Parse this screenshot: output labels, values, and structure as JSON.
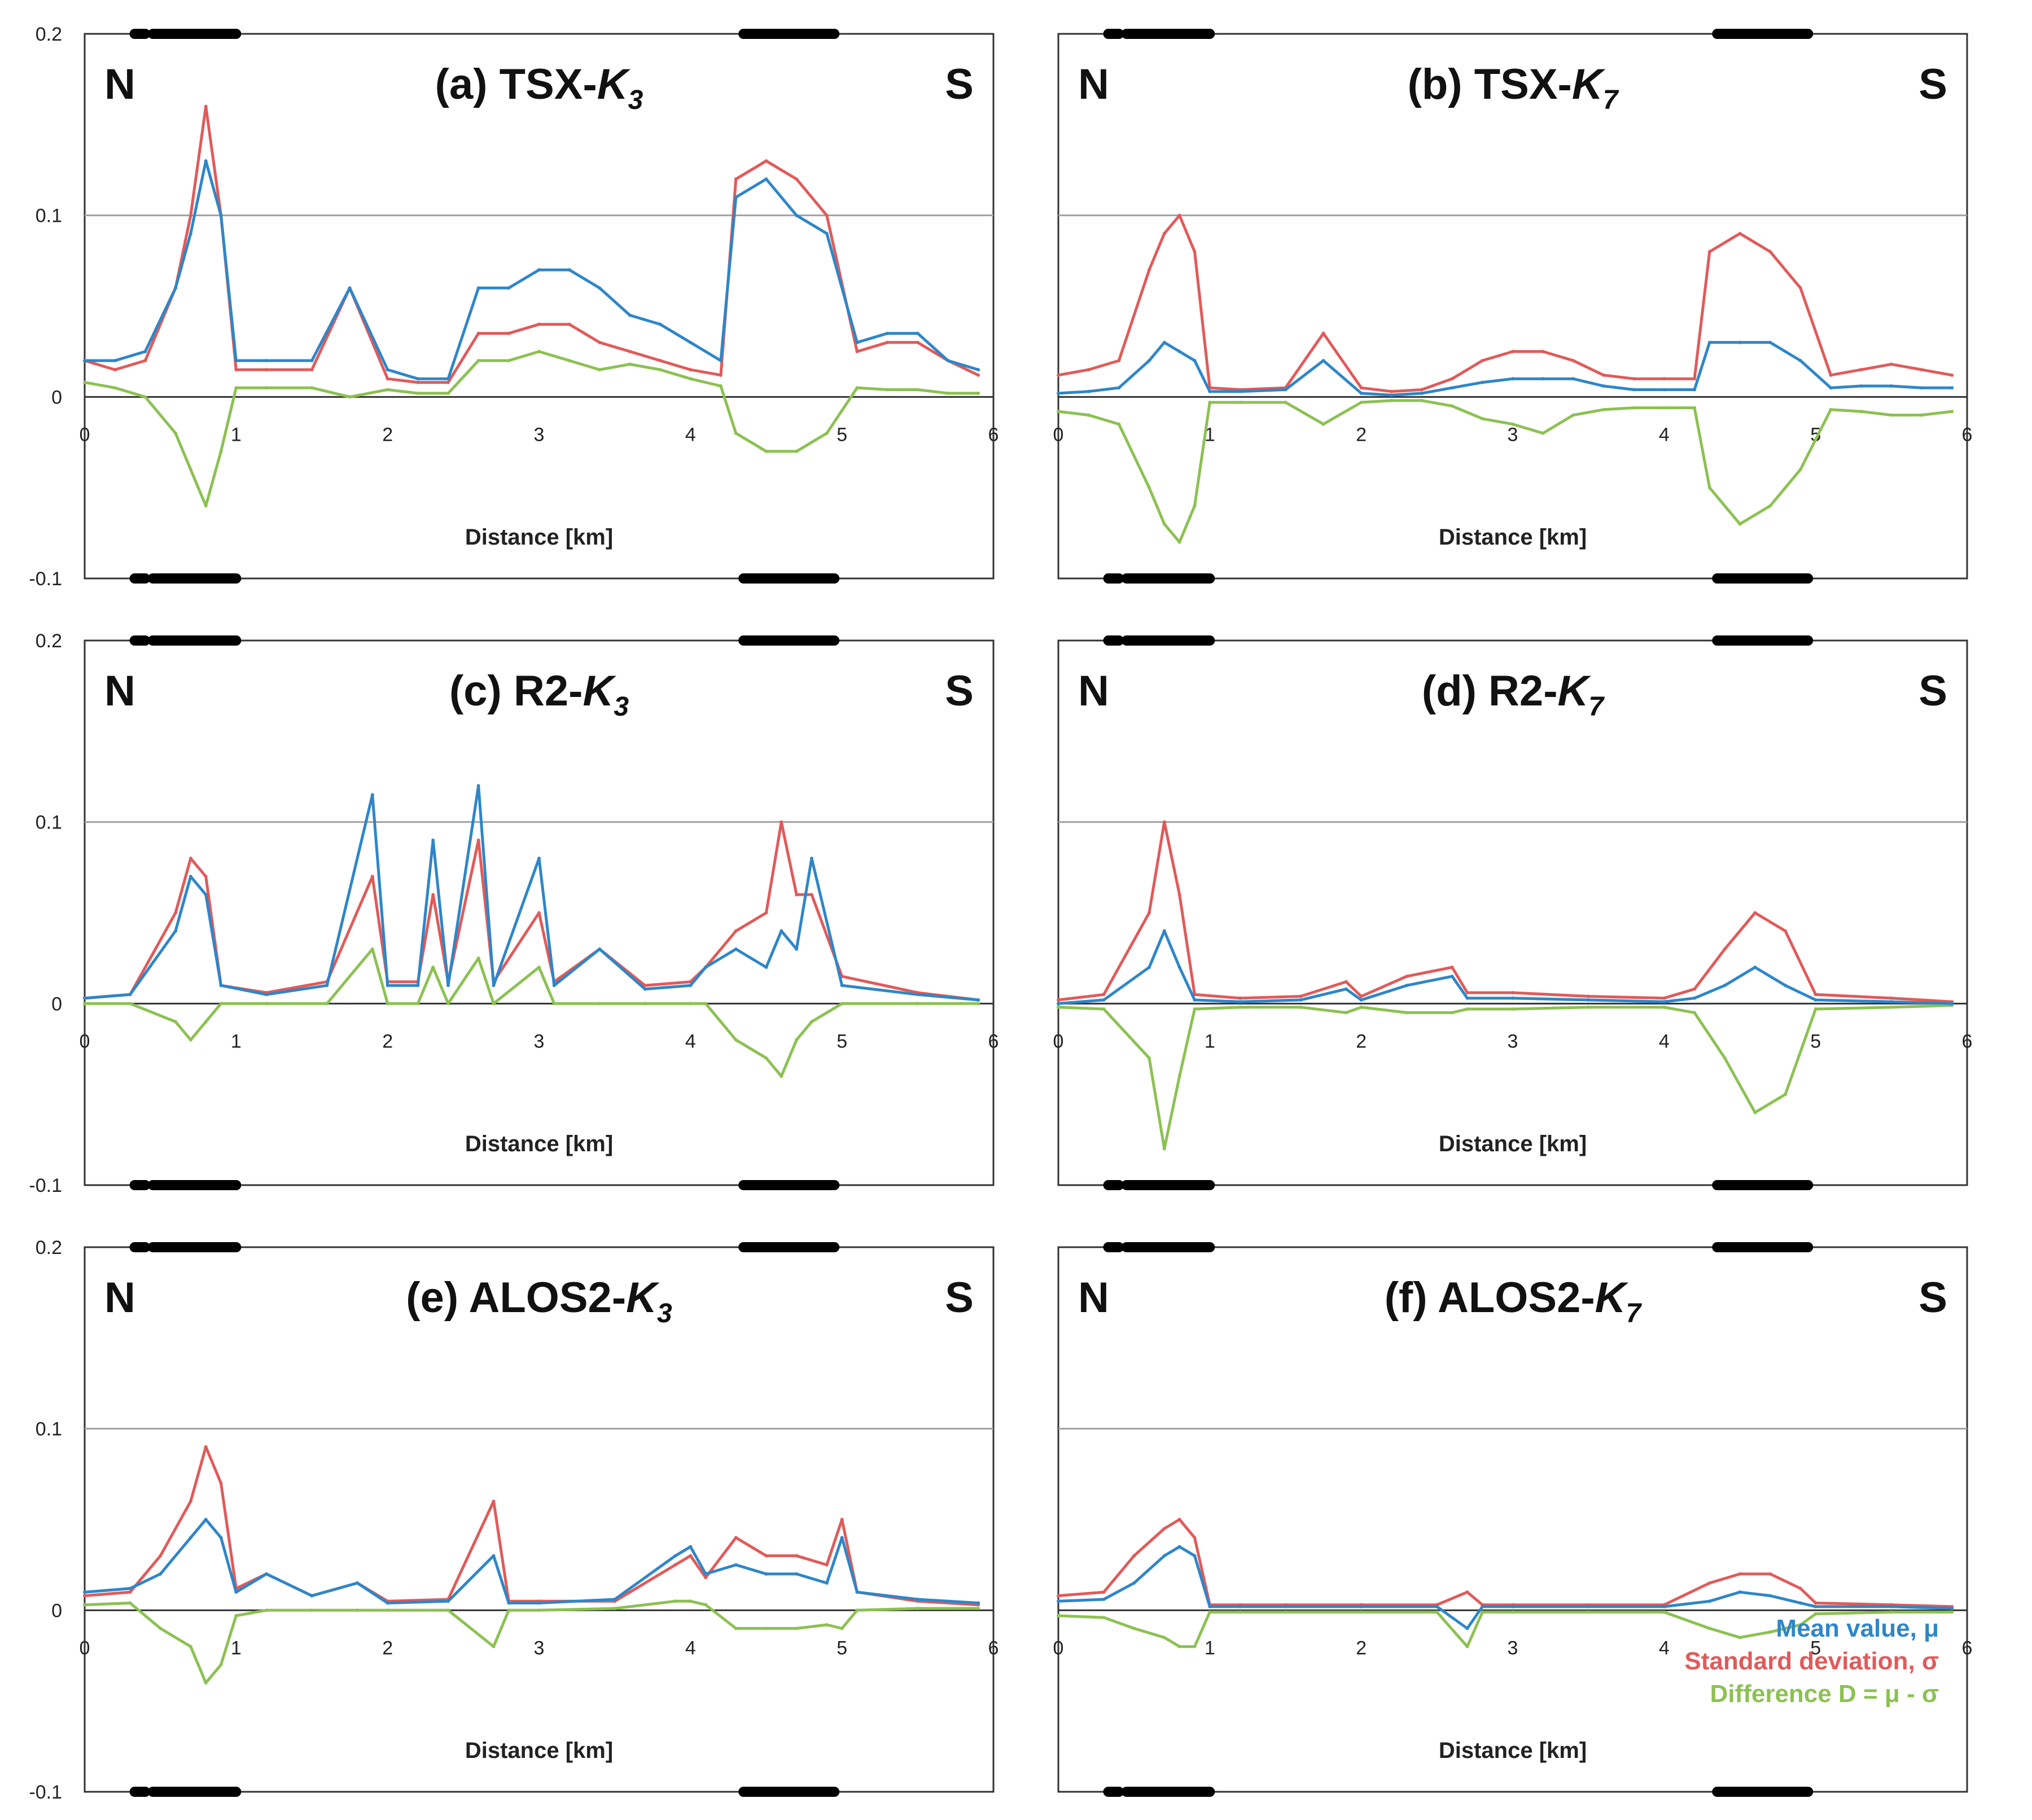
{
  "figure": {
    "colors": {
      "mean": "#2e86c8",
      "std": "#e15a5a",
      "diff": "#8cc152",
      "grid": "#a0a0a0",
      "frame": "#333333"
    },
    "legend": [
      {
        "label": "Mean value, μ",
        "color": "#2e86c8"
      },
      {
        "label": "Standard deviation, σ",
        "color": "#e15a5a"
      },
      {
        "label": "Difference D = μ - σ",
        "color": "#8cc152"
      }
    ]
  },
  "chart_data": [
    {
      "type": "line",
      "title_prefix": "(a) TSX-",
      "title_italic": "K",
      "title_sub": "3",
      "north_label": "N",
      "south_label": "S",
      "xlabel": "Distance [km]",
      "ylabel": "",
      "xlim": [
        0,
        6
      ],
      "ylim": [
        -0.1,
        0.2
      ],
      "x_ticks": [
        "0",
        "1",
        "2",
        "3",
        "4",
        "5",
        "6"
      ],
      "y_ticks": [
        "0.2",
        "0.1",
        "0",
        "-0.1"
      ],
      "show_y_ticks": true,
      "grid": true,
      "bars_km": [
        [
          0.33,
          0.4
        ],
        [
          0.45,
          1.0
        ],
        [
          4.35,
          4.95
        ]
      ],
      "x": [
        0.0,
        0.2,
        0.4,
        0.6,
        0.7,
        0.8,
        0.9,
        1.0,
        1.2,
        1.5,
        1.75,
        2.0,
        2.2,
        2.4,
        2.6,
        2.8,
        3.0,
        3.2,
        3.4,
        3.6,
        3.8,
        4.0,
        4.2,
        4.3,
        4.5,
        4.7,
        4.9,
        5.1,
        5.3,
        5.5,
        5.7,
        5.9
      ],
      "series": [
        {
          "name": "Mean value, μ",
          "values": [
            0.02,
            0.02,
            0.025,
            0.06,
            0.09,
            0.13,
            0.1,
            0.02,
            0.02,
            0.02,
            0.06,
            0.015,
            0.01,
            0.01,
            0.06,
            0.06,
            0.07,
            0.07,
            0.06,
            0.045,
            0.04,
            0.03,
            0.02,
            0.11,
            0.12,
            0.1,
            0.09,
            0.03,
            0.035,
            0.035,
            0.02,
            0.015
          ]
        },
        {
          "name": "Standard deviation, σ",
          "values": [
            0.02,
            0.015,
            0.02,
            0.06,
            0.1,
            0.16,
            0.1,
            0.015,
            0.015,
            0.015,
            0.06,
            0.01,
            0.008,
            0.008,
            0.035,
            0.035,
            0.04,
            0.04,
            0.03,
            0.025,
            0.02,
            0.015,
            0.012,
            0.12,
            0.13,
            0.12,
            0.1,
            0.025,
            0.03,
            0.03,
            0.02,
            0.012
          ]
        },
        {
          "name": "Difference D = μ - σ",
          "values": [
            0.008,
            0.005,
            0.0,
            -0.02,
            -0.04,
            -0.06,
            -0.03,
            0.005,
            0.005,
            0.005,
            0.0,
            0.004,
            0.002,
            0.002,
            0.02,
            0.02,
            0.025,
            0.02,
            0.015,
            0.018,
            0.015,
            0.01,
            0.006,
            -0.02,
            -0.03,
            -0.03,
            -0.02,
            0.005,
            0.004,
            0.004,
            0.002,
            0.002
          ]
        }
      ]
    },
    {
      "type": "line",
      "title_prefix": "(b) TSX-",
      "title_italic": "K",
      "title_sub": "7",
      "north_label": "N",
      "south_label": "S",
      "xlabel": "Distance [km]",
      "ylabel": "",
      "xlim": [
        0,
        6
      ],
      "ylim": [
        -0.1,
        0.2
      ],
      "x_ticks": [
        "0",
        "1",
        "2",
        "3",
        "4",
        "5",
        "6"
      ],
      "y_ticks": [],
      "show_y_ticks": false,
      "grid": true,
      "bars_km": [
        [
          0.33,
          0.4
        ],
        [
          0.45,
          1.0
        ],
        [
          4.35,
          4.95
        ]
      ],
      "x": [
        0.0,
        0.2,
        0.4,
        0.6,
        0.7,
        0.8,
        0.9,
        1.0,
        1.2,
        1.5,
        1.75,
        2.0,
        2.2,
        2.4,
        2.6,
        2.8,
        3.0,
        3.2,
        3.4,
        3.6,
        3.8,
        4.0,
        4.2,
        4.3,
        4.5,
        4.7,
        4.9,
        5.1,
        5.3,
        5.5,
        5.7,
        5.9
      ],
      "series": [
        {
          "name": "Mean value, μ",
          "values": [
            0.002,
            0.003,
            0.005,
            0.02,
            0.03,
            0.025,
            0.02,
            0.003,
            0.003,
            0.004,
            0.02,
            0.002,
            0.001,
            0.002,
            0.005,
            0.008,
            0.01,
            0.01,
            0.01,
            0.006,
            0.004,
            0.004,
            0.004,
            0.03,
            0.03,
            0.03,
            0.02,
            0.005,
            0.006,
            0.006,
            0.005,
            0.005
          ]
        },
        {
          "name": "Standard deviation, σ",
          "values": [
            0.012,
            0.015,
            0.02,
            0.07,
            0.09,
            0.1,
            0.08,
            0.005,
            0.004,
            0.005,
            0.035,
            0.005,
            0.003,
            0.004,
            0.01,
            0.02,
            0.025,
            0.025,
            0.02,
            0.012,
            0.01,
            0.01,
            0.01,
            0.08,
            0.09,
            0.08,
            0.06,
            0.012,
            0.015,
            0.018,
            0.015,
            0.012
          ]
        },
        {
          "name": "Difference D = μ - σ",
          "values": [
            -0.008,
            -0.01,
            -0.015,
            -0.05,
            -0.07,
            -0.08,
            -0.06,
            -0.003,
            -0.003,
            -0.003,
            -0.015,
            -0.003,
            -0.002,
            -0.002,
            -0.005,
            -0.012,
            -0.015,
            -0.02,
            -0.01,
            -0.007,
            -0.006,
            -0.006,
            -0.006,
            -0.05,
            -0.07,
            -0.06,
            -0.04,
            -0.007,
            -0.008,
            -0.01,
            -0.01,
            -0.008
          ]
        }
      ]
    },
    {
      "type": "line",
      "title_prefix": "(c) R2-",
      "title_italic": "K",
      "title_sub": "3",
      "north_label": "N",
      "south_label": "S",
      "xlabel": "Distance [km]",
      "ylabel": "",
      "xlim": [
        0,
        6
      ],
      "ylim": [
        -0.1,
        0.2
      ],
      "x_ticks": [
        "0",
        "1",
        "2",
        "3",
        "4",
        "5",
        "6"
      ],
      "y_ticks": [
        "0.2",
        "0.1",
        "0",
        "-0.1"
      ],
      "show_y_ticks": true,
      "grid": true,
      "bars_km": [
        [
          0.33,
          0.4
        ],
        [
          0.45,
          1.0
        ],
        [
          4.35,
          4.95
        ]
      ],
      "x": [
        0.0,
        0.3,
        0.6,
        0.7,
        0.8,
        0.9,
        1.2,
        1.6,
        1.9,
        2.0,
        2.2,
        2.3,
        2.4,
        2.6,
        2.7,
        3.0,
        3.1,
        3.4,
        3.7,
        4.0,
        4.1,
        4.3,
        4.5,
        4.6,
        4.7,
        4.8,
        5.0,
        5.5,
        5.9
      ],
      "series": [
        {
          "name": "Mean value, μ",
          "values": [
            0.003,
            0.005,
            0.04,
            0.07,
            0.06,
            0.01,
            0.005,
            0.01,
            0.115,
            0.01,
            0.01,
            0.09,
            0.01,
            0.12,
            0.01,
            0.08,
            0.01,
            0.03,
            0.008,
            0.01,
            0.02,
            0.03,
            0.02,
            0.04,
            0.03,
            0.08,
            0.01,
            0.005,
            0.002
          ]
        },
        {
          "name": "Standard deviation, σ",
          "values": [
            0.003,
            0.005,
            0.05,
            0.08,
            0.07,
            0.01,
            0.006,
            0.012,
            0.07,
            0.012,
            0.012,
            0.06,
            0.012,
            0.09,
            0.012,
            0.05,
            0.012,
            0.03,
            0.01,
            0.012,
            0.02,
            0.04,
            0.05,
            0.1,
            0.06,
            0.06,
            0.015,
            0.006,
            0.002
          ]
        },
        {
          "name": "Difference D = μ - σ",
          "values": [
            0.0,
            0.0,
            -0.01,
            -0.02,
            -0.01,
            0.0,
            0.0,
            0.0,
            0.03,
            0.0,
            0.0,
            0.02,
            0.0,
            0.025,
            0.0,
            0.02,
            0.0,
            0.0,
            0.0,
            0.0,
            0.0,
            -0.02,
            -0.03,
            -0.04,
            -0.02,
            -0.01,
            0.0,
            0.0,
            0.0
          ]
        }
      ]
    },
    {
      "type": "line",
      "title_prefix": "(d) R2-",
      "title_italic": "K",
      "title_sub": "7",
      "north_label": "N",
      "south_label": "S",
      "xlabel": "Distance [km]",
      "ylabel": "",
      "xlim": [
        0,
        6
      ],
      "ylim": [
        -0.1,
        0.2
      ],
      "x_ticks": [
        "0",
        "1",
        "2",
        "3",
        "4",
        "5",
        "6"
      ],
      "y_ticks": [],
      "show_y_ticks": false,
      "grid": true,
      "bars_km": [
        [
          0.33,
          0.4
        ],
        [
          0.45,
          1.0
        ],
        [
          4.35,
          4.95
        ]
      ],
      "x": [
        0.0,
        0.3,
        0.6,
        0.7,
        0.8,
        0.9,
        1.2,
        1.6,
        1.9,
        2.0,
        2.3,
        2.6,
        2.7,
        3.0,
        3.5,
        4.0,
        4.2,
        4.4,
        4.6,
        4.8,
        5.0,
        5.5,
        5.9
      ],
      "series": [
        {
          "name": "Mean value, μ",
          "values": [
            0.0,
            0.002,
            0.02,
            0.04,
            0.02,
            0.002,
            0.001,
            0.002,
            0.008,
            0.002,
            0.01,
            0.015,
            0.003,
            0.003,
            0.002,
            0.001,
            0.003,
            0.01,
            0.02,
            0.01,
            0.002,
            0.001,
            0.0
          ]
        },
        {
          "name": "Standard deviation, σ",
          "values": [
            0.002,
            0.005,
            0.05,
            0.1,
            0.06,
            0.005,
            0.003,
            0.004,
            0.012,
            0.004,
            0.015,
            0.02,
            0.006,
            0.006,
            0.004,
            0.003,
            0.008,
            0.03,
            0.05,
            0.04,
            0.005,
            0.003,
            0.001
          ]
        },
        {
          "name": "Difference D = μ - σ",
          "values": [
            -0.002,
            -0.003,
            -0.03,
            -0.08,
            -0.04,
            -0.003,
            -0.002,
            -0.002,
            -0.005,
            -0.002,
            -0.005,
            -0.005,
            -0.003,
            -0.003,
            -0.002,
            -0.002,
            -0.005,
            -0.03,
            -0.06,
            -0.05,
            -0.003,
            -0.002,
            -0.001
          ]
        }
      ]
    },
    {
      "type": "line",
      "title_prefix": "(e) ALOS2-",
      "title_italic": "K",
      "title_sub": "3",
      "north_label": "N",
      "south_label": "S",
      "xlabel": "Distance [km]",
      "ylabel": "",
      "xlim": [
        0,
        6
      ],
      "ylim": [
        -0.1,
        0.2
      ],
      "x_ticks": [
        "0",
        "1",
        "2",
        "3",
        "4",
        "5",
        "6"
      ],
      "y_ticks": [
        "0.2",
        "0.1",
        "0",
        "-0.1"
      ],
      "show_y_ticks": true,
      "grid": true,
      "bars_km": [
        [
          0.33,
          0.4
        ],
        [
          0.45,
          1.0
        ],
        [
          4.35,
          4.95
        ]
      ],
      "x": [
        0.0,
        0.3,
        0.5,
        0.7,
        0.8,
        0.9,
        1.0,
        1.2,
        1.5,
        1.8,
        2.0,
        2.4,
        2.7,
        2.8,
        3.0,
        3.5,
        3.9,
        4.0,
        4.1,
        4.3,
        4.5,
        4.7,
        4.9,
        5.0,
        5.1,
        5.5,
        5.9
      ],
      "series": [
        {
          "name": "Mean value, μ",
          "values": [
            0.01,
            0.012,
            0.02,
            0.04,
            0.05,
            0.04,
            0.01,
            0.02,
            0.008,
            0.015,
            0.004,
            0.005,
            0.03,
            0.004,
            0.004,
            0.006,
            0.03,
            0.035,
            0.02,
            0.025,
            0.02,
            0.02,
            0.015,
            0.04,
            0.01,
            0.006,
            0.004
          ]
        },
        {
          "name": "Standard deviation, σ",
          "values": [
            0.008,
            0.01,
            0.03,
            0.06,
            0.09,
            0.07,
            0.012,
            0.02,
            0.008,
            0.015,
            0.005,
            0.006,
            0.06,
            0.005,
            0.005,
            0.005,
            0.025,
            0.03,
            0.018,
            0.04,
            0.03,
            0.03,
            0.025,
            0.05,
            0.01,
            0.005,
            0.003
          ]
        },
        {
          "name": "Difference D = μ - σ",
          "values": [
            0.003,
            0.004,
            -0.01,
            -0.02,
            -0.04,
            -0.03,
            -0.003,
            0.0,
            0.0,
            0.0,
            0.0,
            0.0,
            -0.02,
            0.0,
            0.0,
            0.001,
            0.005,
            0.005,
            0.003,
            -0.01,
            -0.01,
            -0.01,
            -0.008,
            -0.01,
            0.0,
            0.001,
            0.001
          ]
        }
      ]
    },
    {
      "type": "line",
      "title_prefix": "(f) ALOS2-",
      "title_italic": "K",
      "title_sub": "7",
      "north_label": "N",
      "south_label": "S",
      "xlabel": "Distance [km]",
      "ylabel": "",
      "xlim": [
        0,
        6
      ],
      "ylim": [
        -0.1,
        0.2
      ],
      "x_ticks": [
        "0",
        "1",
        "2",
        "3",
        "4",
        "5",
        "6"
      ],
      "y_ticks": [],
      "show_y_ticks": false,
      "grid": true,
      "show_legend": true,
      "bars_km": [
        [
          0.33,
          0.4
        ],
        [
          0.45,
          1.0
        ],
        [
          4.35,
          4.95
        ]
      ],
      "x": [
        0.0,
        0.3,
        0.5,
        0.7,
        0.8,
        0.9,
        1.0,
        1.2,
        1.5,
        2.0,
        2.5,
        2.7,
        2.8,
        3.0,
        3.5,
        4.0,
        4.3,
        4.5,
        4.7,
        4.9,
        5.0,
        5.5,
        5.9
      ],
      "series": [
        {
          "name": "Mean value, μ",
          "values": [
            0.005,
            0.006,
            0.015,
            0.03,
            0.035,
            0.03,
            0.002,
            0.002,
            0.002,
            0.002,
            0.002,
            -0.01,
            0.002,
            0.002,
            0.002,
            0.002,
            0.005,
            0.01,
            0.008,
            0.004,
            0.002,
            0.002,
            0.001
          ]
        },
        {
          "name": "Standard deviation, σ",
          "values": [
            0.008,
            0.01,
            0.03,
            0.045,
            0.05,
            0.04,
            0.003,
            0.003,
            0.003,
            0.003,
            0.003,
            0.01,
            0.003,
            0.003,
            0.003,
            0.003,
            0.015,
            0.02,
            0.02,
            0.012,
            0.004,
            0.003,
            0.002
          ]
        },
        {
          "name": "Difference D = μ - σ",
          "values": [
            -0.003,
            -0.004,
            -0.01,
            -0.015,
            -0.02,
            -0.02,
            -0.001,
            -0.001,
            -0.001,
            -0.001,
            -0.001,
            -0.02,
            -0.001,
            -0.001,
            -0.001,
            -0.001,
            -0.01,
            -0.015,
            -0.012,
            -0.008,
            -0.002,
            -0.001,
            -0.001
          ]
        }
      ]
    }
  ]
}
